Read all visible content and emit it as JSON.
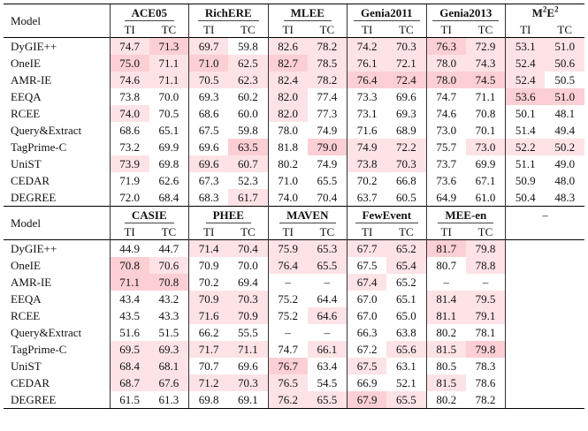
{
  "header_model": "Model",
  "dash": "–",
  "shade_colors": [
    "#fde3e6",
    "#fbcfd4",
    "#f8b3bc"
  ],
  "table1": {
    "datasets": [
      {
        "name": "ACE05",
        "cols": [
          "TI",
          "TC"
        ]
      },
      {
        "name": "RichERE",
        "cols": [
          "TI",
          "TC"
        ]
      },
      {
        "name": "MLEE",
        "cols": [
          "TI",
          "TC"
        ]
      },
      {
        "name": "Genia2011",
        "cols": [
          "TI",
          "TC"
        ]
      },
      {
        "name": "Genia2013",
        "cols": [
          "TI",
          "TC"
        ]
      },
      {
        "name": "M2E2",
        "name_base": "M",
        "name_sup1": "2",
        "name_mid": "E",
        "name_sup2": "2",
        "cols": [
          "TI",
          "TC"
        ]
      }
    ],
    "rows": [
      {
        "model": "DyGIE++",
        "values": [
          "74.7",
          "71.3",
          "69.7",
          "59.8",
          "82.6",
          "78.2",
          "74.2",
          "70.3",
          "76.3",
          "72.9",
          "53.1",
          "51.0"
        ],
        "shade": [
          1,
          2,
          1,
          0,
          1,
          1,
          1,
          1,
          2,
          1,
          1,
          1
        ]
      },
      {
        "model": "OneIE",
        "values": [
          "75.0",
          "71.1",
          "71.0",
          "62.5",
          "82.7",
          "78.5",
          "76.1",
          "72.1",
          "78.0",
          "74.3",
          "52.4",
          "50.6"
        ],
        "shade": [
          2,
          1,
          2,
          1,
          2,
          1,
          1,
          1,
          1,
          1,
          1,
          1
        ]
      },
      {
        "model": "AMR-IE",
        "values": [
          "74.6",
          "71.1",
          "70.5",
          "62.3",
          "82.4",
          "78.2",
          "76.4",
          "72.4",
          "78.0",
          "74.5",
          "52.4",
          "50.5"
        ],
        "shade": [
          1,
          1,
          1,
          1,
          1,
          1,
          2,
          2,
          2,
          2,
          1,
          0
        ]
      },
      {
        "model": "EEQA",
        "values": [
          "73.8",
          "70.0",
          "69.3",
          "60.2",
          "82.0",
          "77.4",
          "73.3",
          "69.6",
          "74.7",
          "71.1",
          "53.6",
          "51.0"
        ],
        "shade": [
          0,
          0,
          0,
          0,
          1,
          0,
          0,
          0,
          0,
          0,
          2,
          2
        ]
      },
      {
        "model": "RCEE",
        "values": [
          "74.0",
          "70.5",
          "68.6",
          "60.0",
          "82.0",
          "77.3",
          "73.1",
          "69.3",
          "74.6",
          "70.8",
          "50.1",
          "48.1"
        ],
        "shade": [
          1,
          0,
          0,
          0,
          1,
          0,
          0,
          0,
          0,
          0,
          0,
          0
        ]
      },
      {
        "model": "Query&Extract",
        "values": [
          "68.6",
          "65.1",
          "67.5",
          "59.8",
          "78.0",
          "74.9",
          "71.6",
          "68.9",
          "73.0",
          "70.1",
          "51.4",
          "49.4"
        ],
        "shade": [
          0,
          0,
          0,
          0,
          0,
          0,
          0,
          0,
          0,
          0,
          0,
          0
        ]
      },
      {
        "model": "TagPrime-C",
        "values": [
          "73.2",
          "69.9",
          "69.6",
          "63.5",
          "81.8",
          "79.0",
          "74.9",
          "72.2",
          "75.7",
          "73.0",
          "52.2",
          "50.2"
        ],
        "shade": [
          0,
          0,
          0,
          2,
          0,
          2,
          1,
          1,
          0,
          1,
          1,
          1
        ]
      },
      {
        "model": "UniST",
        "values": [
          "73.9",
          "69.8",
          "69.6",
          "60.7",
          "80.2",
          "74.9",
          "73.8",
          "70.3",
          "73.7",
          "69.9",
          "51.1",
          "49.0"
        ],
        "shade": [
          1,
          0,
          1,
          1,
          0,
          0,
          1,
          1,
          0,
          0,
          0,
          0
        ]
      },
      {
        "model": "CEDAR",
        "values": [
          "71.9",
          "62.6",
          "67.3",
          "52.3",
          "71.0",
          "65.5",
          "70.2",
          "66.8",
          "73.6",
          "67.1",
          "50.9",
          "48.0"
        ],
        "shade": [
          0,
          0,
          0,
          0,
          0,
          0,
          0,
          0,
          0,
          0,
          0,
          0
        ]
      },
      {
        "model": "DEGREE",
        "values": [
          "72.0",
          "68.4",
          "68.3",
          "61.7",
          "74.0",
          "70.4",
          "63.7",
          "60.5",
          "64.9",
          "61.0",
          "50.4",
          "48.3"
        ],
        "shade": [
          0,
          0,
          0,
          1,
          0,
          0,
          0,
          0,
          0,
          0,
          0,
          0
        ]
      }
    ]
  },
  "table2": {
    "datasets": [
      {
        "name": "CASIE",
        "cols": [
          "TI",
          "TC"
        ]
      },
      {
        "name": "PHEE",
        "cols": [
          "TI",
          "TC"
        ]
      },
      {
        "name": "MAVEN",
        "cols": [
          "TI",
          "TC"
        ]
      },
      {
        "name": "FewEvent",
        "cols": [
          "TI",
          "TC"
        ]
      },
      {
        "name": "MEE-en",
        "cols": [
          "TI",
          "TC"
        ]
      }
    ],
    "empty_header": "–",
    "empty_cell": "–",
    "rows": [
      {
        "model": "DyGIE++",
        "values": [
          "44.9",
          "44.7",
          "71.4",
          "70.4",
          "75.9",
          "65.3",
          "67.7",
          "65.2",
          "81.7",
          "79.8"
        ],
        "shade": [
          0,
          0,
          1,
          1,
          1,
          1,
          1,
          1,
          2,
          1
        ]
      },
      {
        "model": "OneIE",
        "values": [
          "70.8",
          "70.6",
          "70.9",
          "70.0",
          "76.4",
          "65.5",
          "67.5",
          "65.4",
          "80.7",
          "78.8"
        ],
        "shade": [
          2,
          1,
          0,
          0,
          1,
          1,
          0,
          1,
          0,
          1
        ]
      },
      {
        "model": "AMR-IE",
        "values": [
          "71.1",
          "70.8",
          "70.2",
          "69.4",
          "–",
          "–",
          "67.4",
          "65.2",
          "–",
          "–"
        ],
        "shade": [
          2,
          2,
          0,
          0,
          0,
          0,
          1,
          0,
          0,
          0
        ]
      },
      {
        "model": "EEQA",
        "values": [
          "43.4",
          "43.2",
          "70.9",
          "70.3",
          "75.2",
          "64.4",
          "67.0",
          "65.1",
          "81.4",
          "79.5"
        ],
        "shade": [
          0,
          0,
          1,
          1,
          0,
          0,
          0,
          0,
          1,
          1
        ]
      },
      {
        "model": "RCEE",
        "values": [
          "43.5",
          "43.3",
          "71.6",
          "70.9",
          "75.2",
          "64.6",
          "67.0",
          "65.0",
          "81.1",
          "79.1"
        ],
        "shade": [
          0,
          0,
          1,
          1,
          0,
          1,
          0,
          0,
          1,
          1
        ]
      },
      {
        "model": "Query&Extract",
        "values": [
          "51.6",
          "51.5",
          "66.2",
          "55.5",
          "–",
          "–",
          "66.3",
          "63.8",
          "80.2",
          "78.1"
        ],
        "shade": [
          0,
          0,
          0,
          0,
          0,
          0,
          0,
          0,
          0,
          0
        ]
      },
      {
        "model": "TagPrime-C",
        "values": [
          "69.5",
          "69.3",
          "71.7",
          "71.1",
          "74.7",
          "66.1",
          "67.2",
          "65.6",
          "81.5",
          "79.8"
        ],
        "shade": [
          1,
          1,
          1,
          1,
          0,
          1,
          0,
          1,
          1,
          2
        ]
      },
      {
        "model": "UniST",
        "values": [
          "68.4",
          "68.1",
          "70.7",
          "69.6",
          "76.7",
          "63.4",
          "67.5",
          "63.1",
          "80.5",
          "78.3"
        ],
        "shade": [
          1,
          1,
          0,
          0,
          2,
          0,
          1,
          0,
          0,
          0
        ]
      },
      {
        "model": "CEDAR",
        "values": [
          "68.7",
          "67.6",
          "71.2",
          "70.3",
          "76.5",
          "54.5",
          "66.9",
          "52.1",
          "81.5",
          "78.6"
        ],
        "shade": [
          1,
          1,
          1,
          1,
          1,
          0,
          0,
          0,
          1,
          0
        ]
      },
      {
        "model": "DEGREE",
        "values": [
          "61.5",
          "61.3",
          "69.8",
          "69.1",
          "76.2",
          "65.5",
          "67.9",
          "65.5",
          "80.2",
          "78.2"
        ],
        "shade": [
          0,
          0,
          0,
          0,
          1,
          1,
          2,
          1,
          0,
          0
        ]
      }
    ]
  }
}
